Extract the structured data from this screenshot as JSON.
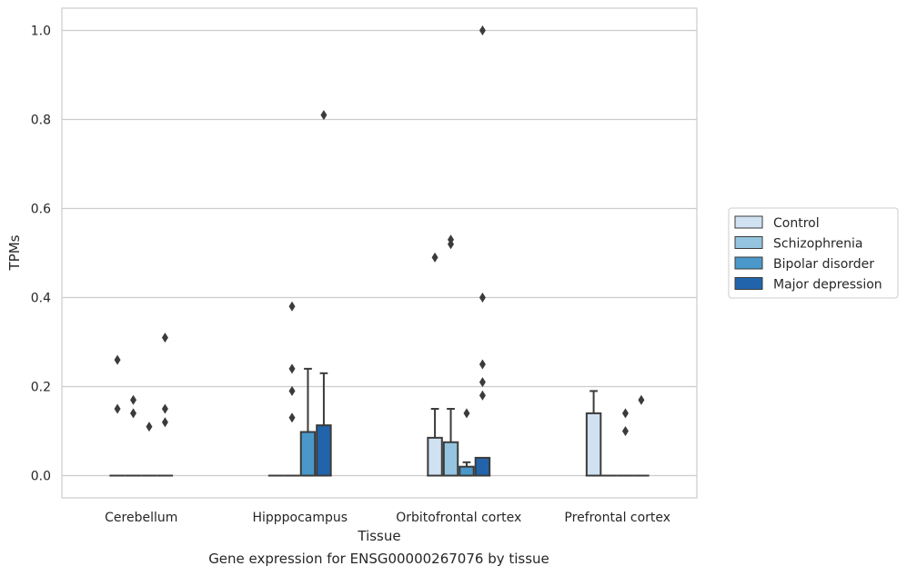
{
  "caption": "Gene expression for ENSG00000267076 by tissue",
  "chart_data": {
    "type": "box",
    "xlabel": "Tissue",
    "ylabel": "TPMs",
    "ylim": [
      -0.05,
      1.05
    ],
    "yticks": [
      0.0,
      0.2,
      0.4,
      0.6,
      0.8,
      1.0
    ],
    "ytick_labels": [
      "0.0",
      "0.2",
      "0.4",
      "0.6",
      "0.8",
      "1.0"
    ],
    "categories": [
      "Cerebellum",
      "Hipppocampus",
      "Orbitofrontal cortex",
      "Prefrontal cortex"
    ],
    "grid": "horizontal",
    "legend_position": "right",
    "series": [
      {
        "name": "Control",
        "color": "#d0e1f2",
        "boxes": [
          {
            "q1": 0,
            "median": 0,
            "q3": 0,
            "whisker_low": 0,
            "whisker_high": 0,
            "outliers": [
              0.15,
              0.26
            ]
          },
          {
            "q1": 0,
            "median": 0,
            "q3": 0,
            "whisker_low": 0,
            "whisker_high": 0,
            "outliers": []
          },
          {
            "q1": 0,
            "median": 0,
            "q3": 0.085,
            "whisker_low": 0,
            "whisker_high": 0.15,
            "outliers": [
              0.49
            ]
          },
          {
            "q1": 0,
            "median": 0,
            "q3": 0.14,
            "whisker_low": 0,
            "whisker_high": 0.19,
            "outliers": []
          }
        ]
      },
      {
        "name": "Schizophrenia",
        "color": "#94c4df",
        "boxes": [
          {
            "q1": 0,
            "median": 0,
            "q3": 0,
            "whisker_low": 0,
            "whisker_high": 0,
            "outliers": [
              0.14,
              0.17
            ]
          },
          {
            "q1": 0,
            "median": 0,
            "q3": 0,
            "whisker_low": 0,
            "whisker_high": 0,
            "outliers": [
              0.13,
              0.19,
              0.24,
              0.38
            ]
          },
          {
            "q1": 0,
            "median": 0,
            "q3": 0.075,
            "whisker_low": 0,
            "whisker_high": 0.15,
            "outliers": [
              0.52,
              0.53
            ]
          },
          {
            "q1": 0,
            "median": 0,
            "q3": 0,
            "whisker_low": 0,
            "whisker_high": 0,
            "outliers": []
          }
        ]
      },
      {
        "name": "Bipolar disorder",
        "color": "#4a98c9",
        "boxes": [
          {
            "q1": 0,
            "median": 0,
            "q3": 0,
            "whisker_low": 0,
            "whisker_high": 0,
            "outliers": [
              0.11
            ]
          },
          {
            "q1": 0,
            "median": 0,
            "q3": 0.098,
            "whisker_low": 0,
            "whisker_high": 0.24,
            "outliers": []
          },
          {
            "q1": 0,
            "median": 0,
            "q3": 0.02,
            "whisker_low": 0,
            "whisker_high": 0.03,
            "outliers": [
              0.14
            ]
          },
          {
            "q1": 0,
            "median": 0,
            "q3": 0,
            "whisker_low": 0,
            "whisker_high": 0,
            "outliers": [
              0.1,
              0.14
            ]
          }
        ]
      },
      {
        "name": "Major depression",
        "color": "#2164ab",
        "boxes": [
          {
            "q1": 0,
            "median": 0,
            "q3": 0,
            "whisker_low": 0,
            "whisker_high": 0,
            "outliers": [
              0.12,
              0.15,
              0.31
            ]
          },
          {
            "q1": 0,
            "median": 0,
            "q3": 0.113,
            "whisker_low": 0,
            "whisker_high": 0.23,
            "outliers": [
              0.81
            ]
          },
          {
            "q1": 0,
            "median": 0,
            "q3": 0.04,
            "whisker_low": 0,
            "whisker_high": 0.04,
            "outliers": [
              0.18,
              0.21,
              0.25,
              0.4,
              1.0
            ]
          },
          {
            "q1": 0,
            "median": 0,
            "q3": 0,
            "whisker_low": 0,
            "whisker_high": 0,
            "outliers": [
              0.17
            ]
          }
        ]
      }
    ]
  }
}
